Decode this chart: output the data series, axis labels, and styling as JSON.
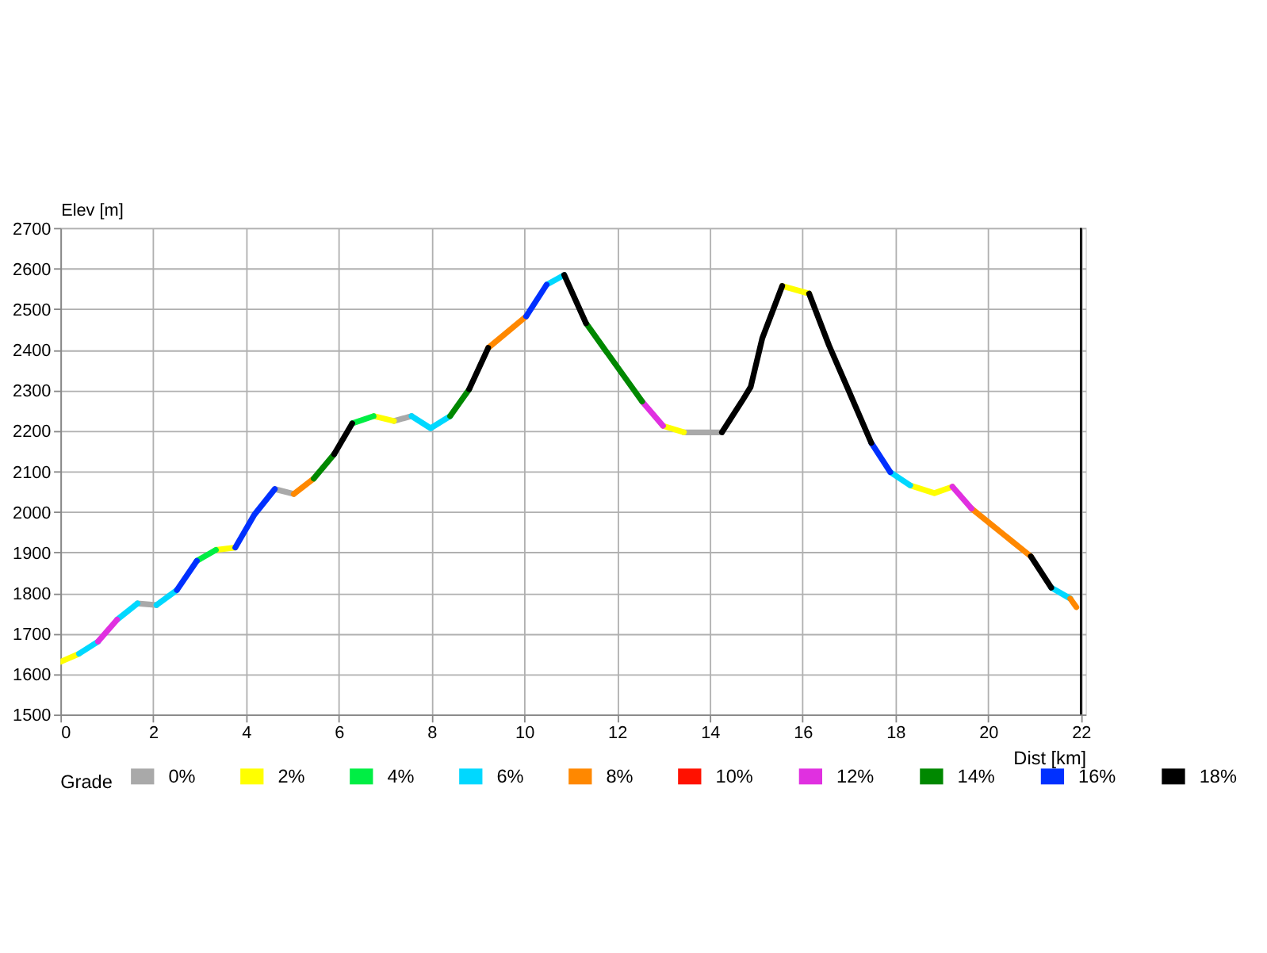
{
  "chart_data": {
    "type": "line",
    "xlabel": "Dist [km]",
    "ylabel": "Elev [m]",
    "legend_title": "Grade",
    "xlim": [
      0,
      22.1
    ],
    "ylim": [
      1500,
      2700
    ],
    "xticks": [
      0,
      2,
      4,
      6,
      8,
      10,
      12,
      14,
      16,
      18,
      20,
      22
    ],
    "yticks": [
      1500,
      1600,
      1700,
      1800,
      1900,
      2000,
      2100,
      2200,
      2300,
      2400,
      2500,
      2600,
      2700
    ],
    "grid": true,
    "legend": "bottom",
    "marker": "none",
    "line_style": "solid",
    "ref_lines": [
      {
        "axis": "x",
        "value": 22,
        "color": "#000000"
      }
    ],
    "series": [
      {
        "name": "0%",
        "color": "#a9a9a9",
        "x": [
          1.66,
          2.07,
          null,
          4.62,
          5.03,
          null,
          7.19,
          7.57,
          null,
          13.44,
          14.26
        ],
        "values": [
          1774,
          1770,
          null,
          2056,
          2044,
          null,
          2224,
          2236,
          null,
          2196,
          2196
        ]
      },
      {
        "name": "2%",
        "color": "#ffff00",
        "x": [
          0,
          0.4,
          null,
          3.35,
          3.77,
          null,
          6.75,
          7.19,
          null,
          12.99,
          13.44,
          null,
          15.56,
          16.14,
          null,
          18.32,
          18.84,
          19.23
        ],
        "values": [
          1630,
          1650,
          null,
          1906,
          1912,
          null,
          2236,
          2224,
          null,
          2212,
          2196,
          null,
          2557,
          2538,
          null,
          2065,
          2046,
          2062
        ]
      },
      {
        "name": "4%",
        "color": "#00ee44",
        "x": [
          2.94,
          3.35,
          null,
          6.29,
          6.75
        ],
        "values": [
          1879,
          1906,
          null,
          2218,
          2236
        ]
      },
      {
        "name": "6%",
        "color": "#00d8ff",
        "x": [
          0.4,
          0.81,
          null,
          1.22,
          1.66,
          null,
          2.07,
          2.51,
          null,
          7.57,
          7.98,
          8.4,
          null,
          10.48,
          10.86,
          null,
          17.89,
          18.32,
          null,
          21.36,
          21.77
        ],
        "values": [
          1650,
          1680,
          null,
          1734,
          1774,
          null,
          1770,
          1807,
          null,
          2236,
          2206,
          2236,
          null,
          2560,
          2584,
          null,
          2098,
          2065,
          null,
          1813,
          1786
        ]
      },
      {
        "name": "8%",
        "color": "#ff8800",
        "x": [
          5.03,
          5.46,
          null,
          9.22,
          10.04,
          null,
          19.64,
          20.92,
          null,
          21.77,
          21.9
        ],
        "values": [
          2044,
          2082,
          null,
          2404,
          2482,
          null,
          2008,
          1890,
          null,
          1786,
          1765
        ]
      },
      {
        "name": "10%",
        "color": "#ff1100"
      },
      {
        "name": "12%",
        "color": "#e030e0",
        "x": [
          0.81,
          1.22,
          null,
          12.54,
          12.99,
          null,
          19.23,
          19.64
        ],
        "values": [
          1680,
          1734,
          null,
          2272,
          2212,
          null,
          2062,
          2008
        ]
      },
      {
        "name": "14%",
        "color": "#008800",
        "x": [
          5.46,
          5.9,
          null,
          8.4,
          8.81,
          null,
          11.33,
          12.54
        ],
        "values": [
          2082,
          2142,
          null,
          2236,
          2302,
          null,
          2465,
          2272
        ]
      },
      {
        "name": "16%",
        "color": "#0030ff",
        "x": [
          2.51,
          2.94,
          null,
          3.77,
          4.18,
          4.62,
          null,
          10.04,
          10.48,
          null,
          17.48,
          17.89
        ],
        "values": [
          1807,
          1879,
          null,
          1912,
          1993,
          2056,
          null,
          2482,
          2560,
          null,
          2170,
          2098
        ]
      },
      {
        "name": "18%",
        "color": "#000000",
        "x": [
          5.9,
          6.29,
          null,
          8.81,
          9.22,
          null,
          10.86,
          11.33,
          null,
          14.26,
          14.72,
          14.88,
          15.13,
          15.56,
          null,
          16.14,
          16.57,
          16.98,
          17.48,
          null,
          20.92,
          21.36
        ],
        "values": [
          2142,
          2218,
          null,
          2302,
          2404,
          null,
          2584,
          2465,
          null,
          2196,
          2278,
          2308,
          2428,
          2557,
          null,
          2538,
          2410,
          2302,
          2170,
          null,
          1890,
          1813
        ]
      }
    ]
  }
}
